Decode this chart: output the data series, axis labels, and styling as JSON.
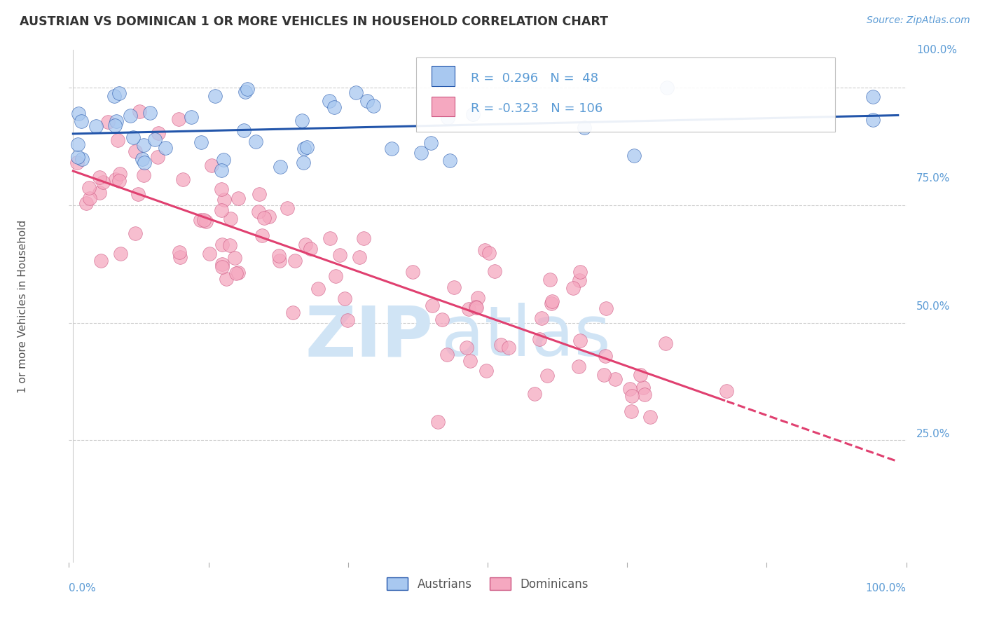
{
  "title": "AUSTRIAN VS DOMINICAN 1 OR MORE VEHICLES IN HOUSEHOLD CORRELATION CHART",
  "source": "Source: ZipAtlas.com",
  "ylabel": "1 or more Vehicles in Household",
  "R_austrian": 0.296,
  "N_austrian": 48,
  "R_dominican": -0.323,
  "N_dominican": 106,
  "color_austrian": "#A8C8F0",
  "color_dominican": "#F5A8C0",
  "line_color_austrian": "#2255AA",
  "line_color_dominican": "#E04070",
  "title_color": "#333333",
  "source_color": "#5B9BD5",
  "axis_label_color": "#5B9BD5",
  "tick_label_color": "#5B9BD5",
  "ylabel_color": "#555555",
  "background_color": "#FFFFFF",
  "grid_color": "#CCCCCC",
  "watermark_color": "#D0E4F5"
}
